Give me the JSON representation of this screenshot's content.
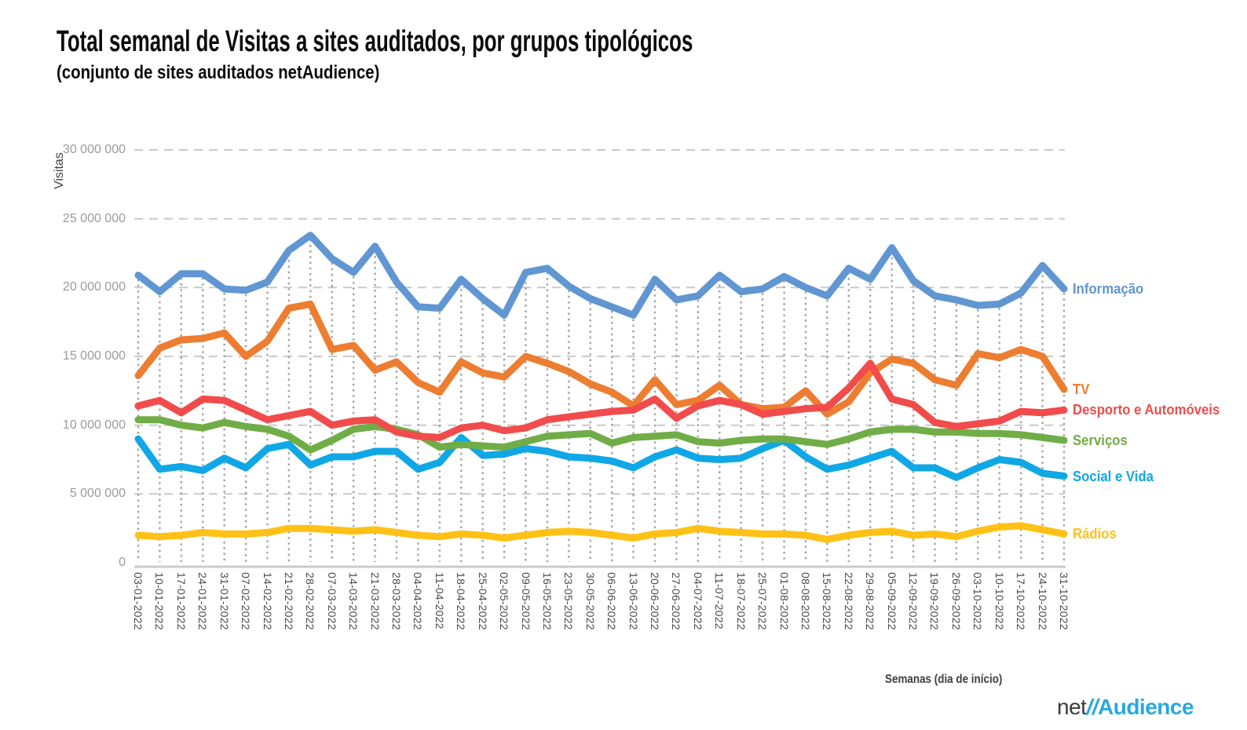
{
  "header": {
    "title": "Total semanal de Visitas a sites auditados, por grupos tipológicos",
    "subtitle": "(conjunto de sites auditados netAudience)"
  },
  "y_axis": {
    "title": "Visitas",
    "ticks": [
      {
        "value": 0,
        "label": "0"
      },
      {
        "value": 5000000,
        "label": "5 000 000"
      },
      {
        "value": 10000000,
        "label": "10 000 000"
      },
      {
        "value": 15000000,
        "label": "15 000 000"
      },
      {
        "value": 20000000,
        "label": "20 000 000"
      },
      {
        "value": 25000000,
        "label": "25 000 000"
      },
      {
        "value": 30000000,
        "label": "30 000 000"
      }
    ]
  },
  "x_axis": {
    "title": "Semanas  (dia de início)"
  },
  "logo": {
    "net": "net",
    "slashes": "//",
    "audience": "Audience",
    "net_color": "#3a3a3a",
    "accent_color": "#29a8e0"
  },
  "chart_data": {
    "type": "line",
    "title": "Total semanal de Visitas a sites auditados, por grupos tipológicos",
    "subtitle": "(conjunto de sites auditados netAudience)",
    "xlabel": "Semanas  (dia de início)",
    "ylabel": "Visitas",
    "ylim": [
      0,
      30000000
    ],
    "y_tick_interval": 5000000,
    "grid": {
      "horizontal_style": "dashed",
      "horizontal_color": "#c9c9c9",
      "vertical_style": "dotted-droplines-from-first-series",
      "vertical_color": "#a5a5a5",
      "axis_line_color": "#cbcbcb"
    },
    "legend_position": "right-end-labels",
    "x": [
      "03-01-2022",
      "10-01-2022",
      "17-01-2022",
      "24-01-2022",
      "31-01-2022",
      "07-02-2022",
      "14-02-2022",
      "21-02-2022",
      "28-02-2022",
      "07-03-2022",
      "14-03-2022",
      "21-03-2022",
      "28-03-2022",
      "04-04-2022",
      "11-04-2022",
      "18-04-2022",
      "25-04-2022",
      "02-05-2022",
      "09-05-2022",
      "16-05-2022",
      "23-05-2022",
      "30-05-2022",
      "06-06-2022",
      "13-06-2022",
      "20-06-2022",
      "27-06-2022",
      "04-07-2022",
      "11-07-2022",
      "18-07-2022",
      "25-07-2022",
      "01-08-2022",
      "08-08-2022",
      "15-08-2022",
      "22-08-2022",
      "29-08-2022",
      "05-09-2022",
      "12-09-2022",
      "19-09-2022",
      "26-09-2022",
      "03-10-2022",
      "10-10-2022",
      "17-10-2022",
      "24-10-2022",
      "31-10-2022"
    ],
    "series": [
      {
        "name": "Informação",
        "color": "#6096d1",
        "values": [
          20900000,
          19700000,
          21000000,
          21000000,
          19900000,
          19800000,
          20400000,
          22700000,
          23800000,
          22100000,
          21100000,
          23000000,
          20400000,
          18600000,
          18500000,
          20600000,
          19200000,
          18000000,
          21100000,
          21400000,
          20100000,
          19200000,
          18600000,
          18000000,
          20600000,
          19100000,
          19400000,
          20900000,
          19700000,
          19900000,
          20800000,
          20000000,
          19400000,
          21400000,
          20600000,
          22900000,
          20500000,
          19400000,
          19100000,
          18700000,
          18800000,
          19600000,
          21600000,
          19900000
        ]
      },
      {
        "name": "TV",
        "color": "#ed7d31",
        "values": [
          13600000,
          15600000,
          16200000,
          16300000,
          16700000,
          15000000,
          16100000,
          18500000,
          18800000,
          15500000,
          15800000,
          14000000,
          14600000,
          13100000,
          12400000,
          14600000,
          13800000,
          13500000,
          15000000,
          14500000,
          13900000,
          13000000,
          12400000,
          11400000,
          13300000,
          11500000,
          11800000,
          12900000,
          11500000,
          11200000,
          11300000,
          12500000,
          10800000,
          11700000,
          13800000,
          14800000,
          14500000,
          13300000,
          12900000,
          15200000,
          14900000,
          15500000,
          15000000,
          12600000
        ]
      },
      {
        "name": "Desporto e Automóveis",
        "color": "#f24b4b",
        "values": [
          11400000,
          11800000,
          10900000,
          11900000,
          11800000,
          11100000,
          10400000,
          10700000,
          11000000,
          10000000,
          10300000,
          10400000,
          9500000,
          9200000,
          9100000,
          9800000,
          10000000,
          9600000,
          9800000,
          10400000,
          10600000,
          10800000,
          11000000,
          11100000,
          11900000,
          10500000,
          11400000,
          11800000,
          11500000,
          10800000,
          11000000,
          11200000,
          11300000,
          12700000,
          14500000,
          11900000,
          11500000,
          10200000,
          9900000,
          10100000,
          10300000,
          11000000,
          10900000,
          11100000
        ]
      },
      {
        "name": "Serviços",
        "color": "#70ad47",
        "values": [
          10400000,
          10400000,
          10000000,
          9800000,
          10200000,
          9900000,
          9700000,
          9200000,
          8200000,
          8900000,
          9700000,
          9900000,
          9700000,
          9300000,
          8400000,
          8600000,
          8500000,
          8400000,
          8800000,
          9200000,
          9300000,
          9400000,
          8700000,
          9100000,
          9200000,
          9300000,
          8800000,
          8700000,
          8900000,
          9000000,
          9000000,
          8800000,
          8600000,
          9000000,
          9500000,
          9700000,
          9700000,
          9500000,
          9500000,
          9400000,
          9400000,
          9300000,
          9100000,
          8900000
        ]
      },
      {
        "name": "Social e Vida",
        "color": "#0fa7e6",
        "values": [
          9000000,
          6800000,
          7000000,
          6700000,
          7600000,
          6900000,
          8300000,
          8600000,
          7100000,
          7700000,
          7700000,
          8100000,
          8100000,
          6800000,
          7300000,
          9100000,
          7800000,
          7900000,
          8300000,
          8100000,
          7700000,
          7600000,
          7400000,
          6900000,
          7700000,
          8200000,
          7600000,
          7500000,
          7600000,
          8300000,
          8900000,
          7700000,
          6800000,
          7100000,
          7600000,
          8100000,
          6900000,
          6900000,
          6200000,
          6900000,
          7500000,
          7300000,
          6500000,
          6300000
        ]
      },
      {
        "name": "Rádios",
        "color": "#ffc115",
        "values": [
          2000000,
          1900000,
          2000000,
          2200000,
          2100000,
          2100000,
          2200000,
          2500000,
          2500000,
          2400000,
          2300000,
          2400000,
          2200000,
          2000000,
          1900000,
          2100000,
          2000000,
          1800000,
          2000000,
          2200000,
          2300000,
          2200000,
          2000000,
          1800000,
          2100000,
          2200000,
          2500000,
          2300000,
          2200000,
          2100000,
          2100000,
          2000000,
          1700000,
          2000000,
          2200000,
          2300000,
          2000000,
          2100000,
          1900000,
          2300000,
          2600000,
          2700000,
          2400000,
          2100000
        ]
      }
    ]
  }
}
